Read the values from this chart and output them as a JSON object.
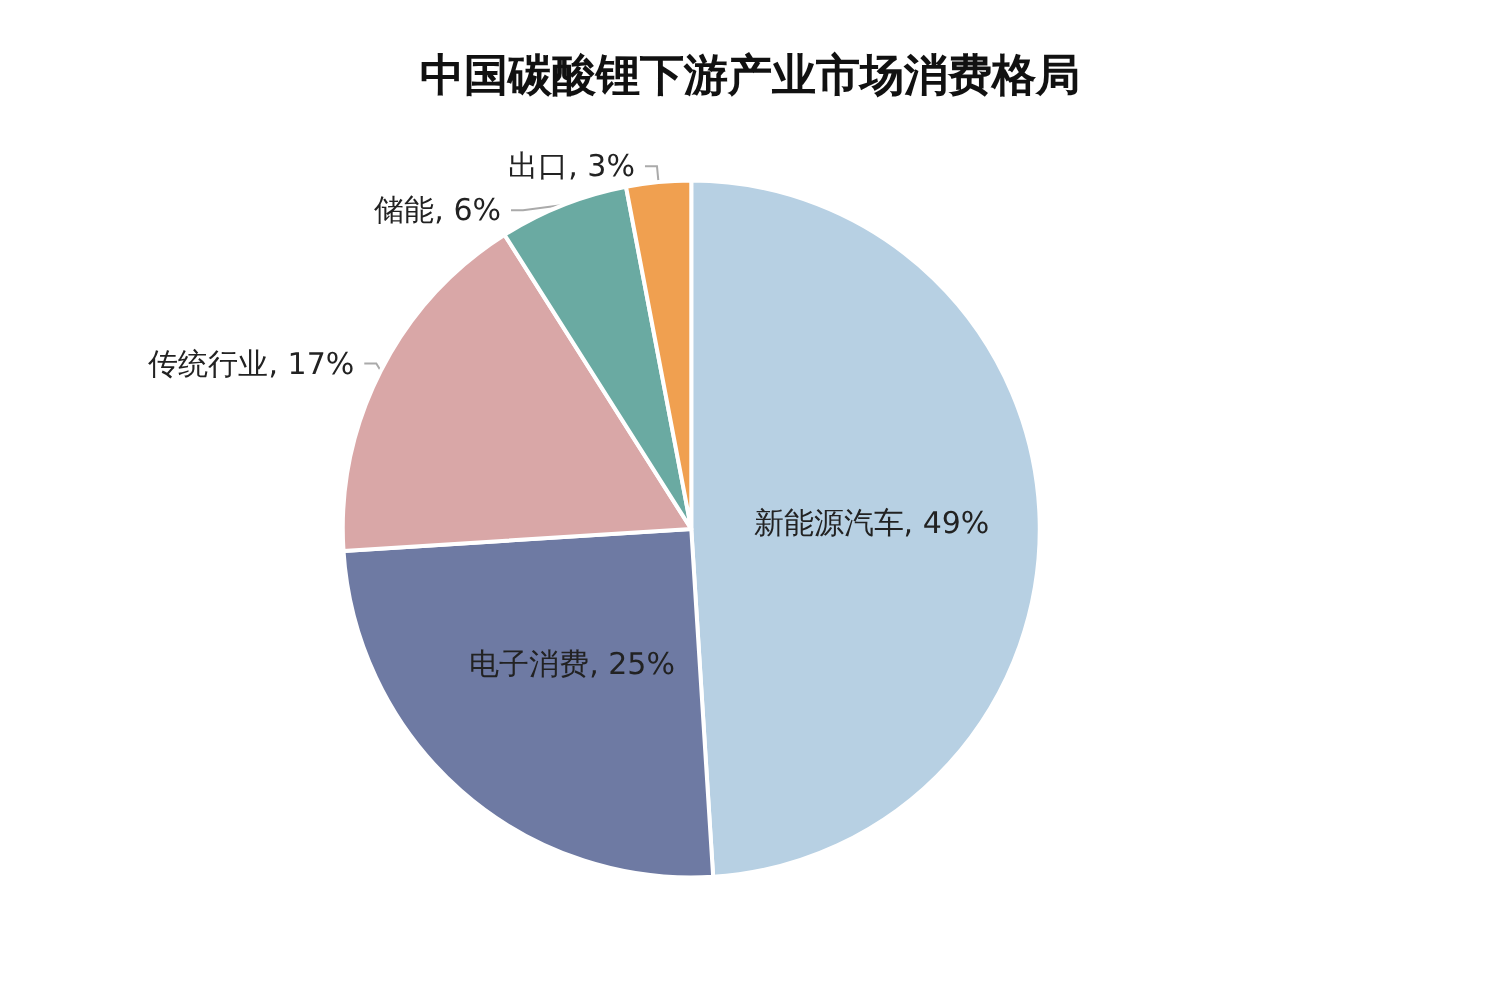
{
  "chart_data": {
    "type": "pie",
    "title": "中国碳酸锂下游产业市场消费格局",
    "categories": [
      "新能源汽车",
      "电子消费",
      "传统行业",
      "储能",
      "出口"
    ],
    "values": [
      49,
      25,
      17,
      6,
      3
    ],
    "value_labels": [
      "49%",
      "25%",
      "17%",
      "6%",
      "3%"
    ],
    "colors": [
      "#b7d0e3",
      "#6e7aa3",
      "#d9a7a7",
      "#6aaaa2",
      "#f0a050"
    ],
    "legend": false
  }
}
